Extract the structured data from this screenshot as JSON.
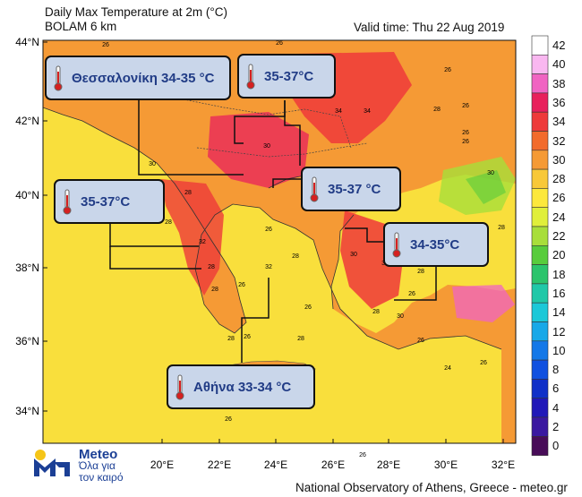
{
  "title_line1": "Daily Max Temperature at 2m (°C)",
  "title_line2": "BOLAM 6 km",
  "valid_time": "Valid time: Thu 22 Aug 2019",
  "lat_labels": [
    "44°N",
    "42°N",
    "40°N",
    "38°N",
    "36°N",
    "34°N"
  ],
  "lon_labels": [
    "20°E",
    "22°E",
    "24°E",
    "26°E",
    "28°E",
    "30°E",
    "32°E"
  ],
  "legend": {
    "values": [
      "42",
      "40",
      "38",
      "36",
      "34",
      "32",
      "30",
      "28",
      "26",
      "24",
      "22",
      "20",
      "18",
      "16",
      "14",
      "12",
      "10",
      "8",
      "6",
      "4",
      "2",
      "0"
    ],
    "colors": [
      "#ffffff",
      "#f9b7f0",
      "#f064c2",
      "#e8205c",
      "#ee3a3a",
      "#f26b2c",
      "#f59a35",
      "#f8c838",
      "#fce83c",
      "#e0ef3a",
      "#a8de3a",
      "#58cc3c",
      "#2cc46c",
      "#20c8a8",
      "#1cc8d8",
      "#18a8e8",
      "#1478e8",
      "#1050e0",
      "#1030c8",
      "#2018b8",
      "#3a18a0",
      "#480c58"
    ]
  },
  "callouts": [
    {
      "label": "Θεσσαλονίκη 34-35 °C"
    },
    {
      "label": "35-37°C"
    },
    {
      "label": "35-37°C"
    },
    {
      "label": "35-37 °C"
    },
    {
      "label": "34-35°C"
    },
    {
      "label": "Αθήνα 33-34 °C"
    }
  ],
  "map_numbers": [
    "26",
    "26",
    "26",
    "34",
    "34",
    "26",
    "30",
    "30",
    "28",
    "26",
    "26",
    "32",
    "28",
    "28",
    "32",
    "30",
    "32",
    "28",
    "26",
    "28",
    "26",
    "28",
    "28",
    "26",
    "26",
    "24",
    "26",
    "26",
    "26",
    "28",
    "26",
    "30",
    "30",
    "28",
    "28",
    "26",
    "28",
    "26",
    "28",
    "26"
  ],
  "logo": {
    "name": "Meteo",
    "tagline1": "Όλα για",
    "tagline2": "τον καιρό"
  },
  "footer": "National Observatory of Athens, Greece - meteo.gr",
  "colors": {
    "sea": "#f9df3c",
    "land_hot": "#f26b2c",
    "land_warm": "#f59a35",
    "callout_bg": "#c9d6ea",
    "callout_text": "#213c86"
  }
}
